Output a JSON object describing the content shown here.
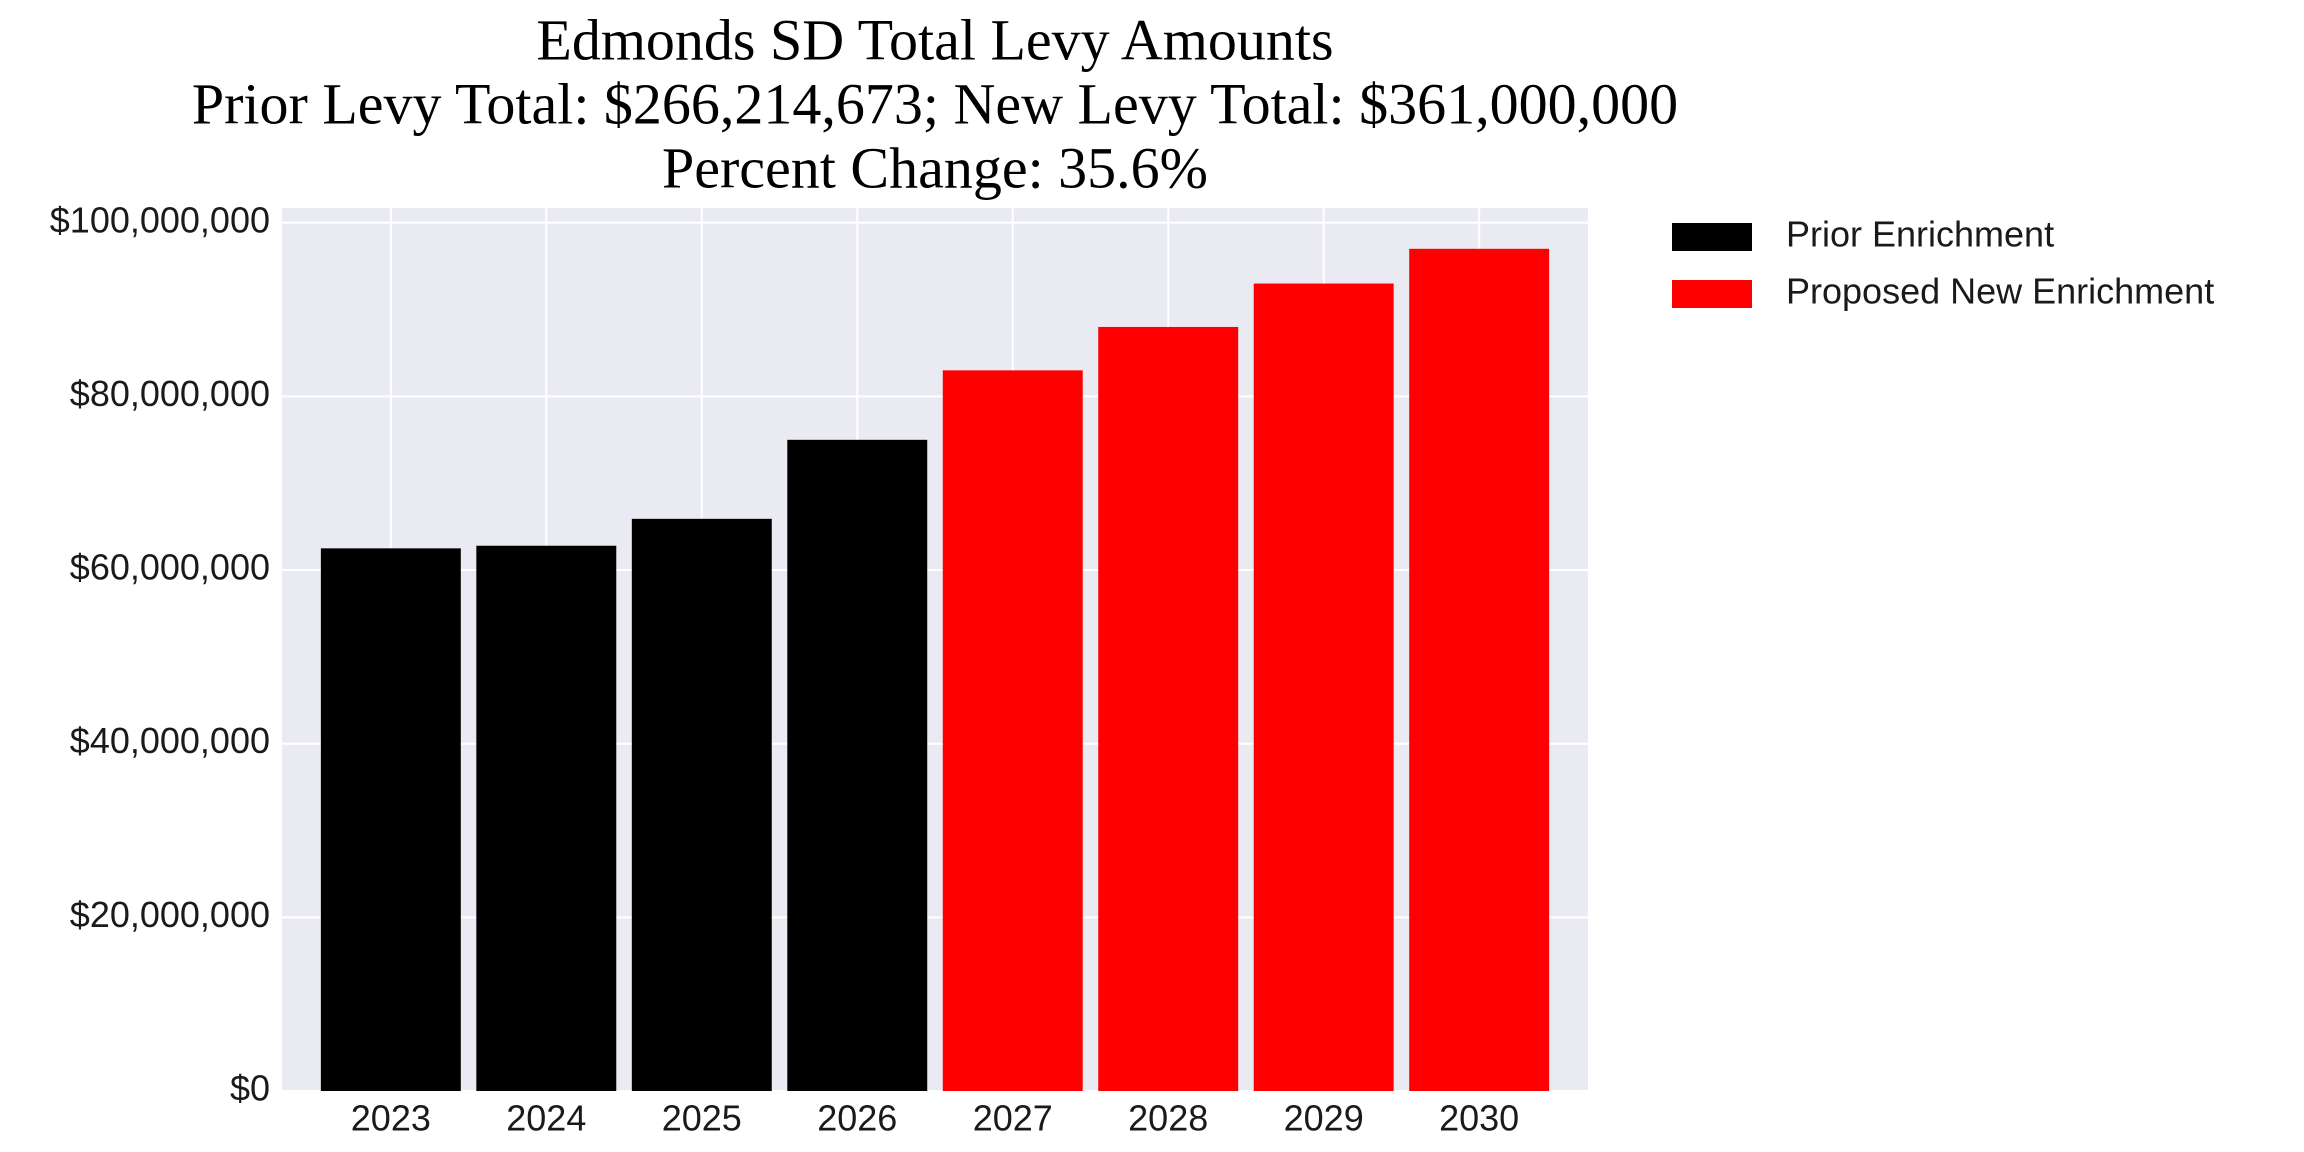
{
  "chart_data": {
    "type": "bar",
    "title": [
      "Edmonds SD Total Levy Amounts",
      "Prior Levy Total:  $266,214,673; New Levy Total: $361,000,000",
      "Percent Change: 35.6%"
    ],
    "categories": [
      "2023",
      "2024",
      "2025",
      "2026",
      "2027",
      "2028",
      "2029",
      "2030"
    ],
    "series": [
      {
        "name": "Prior Enrichment",
        "color": "#000000",
        "values": [
          62500000,
          62800000,
          65900000,
          75000000,
          null,
          null,
          null,
          null
        ]
      },
      {
        "name": "Proposed New Enrichment",
        "color": "#ff0000",
        "values": [
          null,
          null,
          null,
          null,
          83000000,
          88000000,
          93000000,
          97000000
        ]
      }
    ],
    "ylim": [
      0,
      101700000
    ],
    "yticks": [
      {
        "value": 0,
        "label": "$0"
      },
      {
        "value": 20000000,
        "label": "$20,000,000"
      },
      {
        "value": 40000000,
        "label": "$40,000,000"
      },
      {
        "value": 60000000,
        "label": "$60,000,000"
      },
      {
        "value": 80000000,
        "label": "$80,000,000"
      },
      {
        "value": 100000000,
        "label": "$100,000,000"
      }
    ],
    "grid": true,
    "legend": "outside right"
  }
}
